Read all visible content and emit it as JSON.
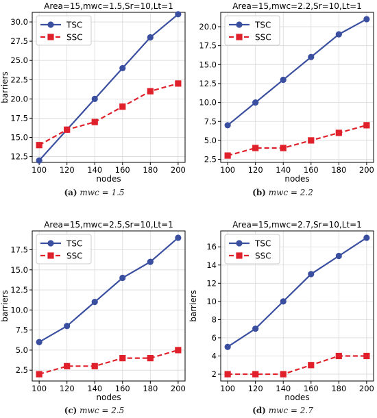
{
  "colors": {
    "tsc": "#3a4fa0",
    "ssc": "#e0202a",
    "grid": "#d9d9d9",
    "axis": "#000000"
  },
  "chart_data": [
    {
      "type": "line",
      "title": "Area=15,mwc=1.5,Sr=10,Lt=1",
      "xlabel": "nodes",
      "ylabel": "barriers",
      "x": [
        100,
        120,
        140,
        160,
        180,
        200
      ],
      "xlim": [
        95,
        205
      ],
      "ylim": [
        11.75,
        31.25
      ],
      "yticks": [
        12.5,
        15.0,
        17.5,
        20.0,
        22.5,
        25.0,
        27.5,
        30.0
      ],
      "ytick_labels": [
        "12.5",
        "15.0",
        "17.5",
        "20.0",
        "22.5",
        "25.0",
        "27.5",
        "30.0"
      ],
      "grid": true,
      "legend_position": "top-left",
      "series": [
        {
          "name": "TSC",
          "style": "solid",
          "marker": "circle",
          "values": [
            12,
            16,
            20,
            24,
            28,
            31
          ]
        },
        {
          "name": "SSC",
          "style": "dashed",
          "marker": "square",
          "values": [
            14,
            16,
            17,
            19,
            21,
            22
          ]
        }
      ],
      "caption": {
        "letter": "(a)",
        "text": "mwc = 1.5"
      }
    },
    {
      "type": "line",
      "title": "Area=15,mwc=2.2,Sr=10,Lt=1",
      "xlabel": "nodes",
      "ylabel": "",
      "x": [
        100,
        120,
        140,
        160,
        180,
        200
      ],
      "xlim": [
        95,
        205
      ],
      "ylim": [
        2.1,
        21.9
      ],
      "yticks": [
        2.5,
        5.0,
        7.5,
        10.0,
        12.5,
        15.0,
        17.5,
        20.0
      ],
      "ytick_labels": [
        "2.5",
        "5.0",
        "7.5",
        "10.0",
        "12.5",
        "15.0",
        "17.5",
        "20.0"
      ],
      "grid": true,
      "legend_position": "top-left",
      "series": [
        {
          "name": "TSC",
          "style": "solid",
          "marker": "circle",
          "values": [
            7,
            10,
            13,
            16,
            19,
            21
          ]
        },
        {
          "name": "SSC",
          "style": "dashed",
          "marker": "square",
          "values": [
            3,
            4,
            4,
            5,
            6,
            7
          ]
        }
      ],
      "caption": {
        "letter": "(b)",
        "text": "mwc = 2.2"
      }
    },
    {
      "type": "line",
      "title": "Area=15,mwc=2.5,Sr=10,Lt=1",
      "xlabel": "nodes",
      "ylabel": "barriers",
      "x": [
        100,
        120,
        140,
        160,
        180,
        200
      ],
      "xlim": [
        95,
        205
      ],
      "ylim": [
        1.15,
        19.85
      ],
      "yticks": [
        2.5,
        5.0,
        7.5,
        10.0,
        12.5,
        15.0,
        17.5
      ],
      "ytick_labels": [
        "2.5",
        "5.0",
        "7.5",
        "10.0",
        "12.5",
        "15.0",
        "17.5"
      ],
      "grid": true,
      "legend_position": "top-left",
      "series": [
        {
          "name": "TSC",
          "style": "solid",
          "marker": "circle",
          "values": [
            6,
            8,
            11,
            14,
            16,
            19
          ]
        },
        {
          "name": "SSC",
          "style": "dashed",
          "marker": "square",
          "values": [
            2,
            3,
            3,
            4,
            4,
            5
          ]
        }
      ],
      "caption": {
        "letter": "(c)",
        "text": "mwc = 2.5"
      }
    },
    {
      "type": "line",
      "title": "Area=15,mwc=2.7,Sr=10,Lt=1",
      "xlabel": "nodes",
      "ylabel": "barriers",
      "x": [
        100,
        120,
        140,
        160,
        180,
        200
      ],
      "xlim": [
        95,
        205
      ],
      "ylim": [
        1.25,
        17.75
      ],
      "yticks": [
        2,
        4,
        6,
        8,
        10,
        12,
        14,
        16
      ],
      "ytick_labels": [
        "2",
        "4",
        "6",
        "8",
        "10",
        "12",
        "14",
        "16"
      ],
      "grid": true,
      "legend_position": "top-left",
      "series": [
        {
          "name": "TSC",
          "style": "solid",
          "marker": "circle",
          "values": [
            5,
            7,
            10,
            13,
            15,
            17
          ]
        },
        {
          "name": "SSC",
          "style": "dashed",
          "marker": "square",
          "values": [
            2,
            2,
            2,
            3,
            4,
            4
          ]
        }
      ],
      "caption": {
        "letter": "(d)",
        "text": "mwc = 2.7"
      }
    }
  ]
}
